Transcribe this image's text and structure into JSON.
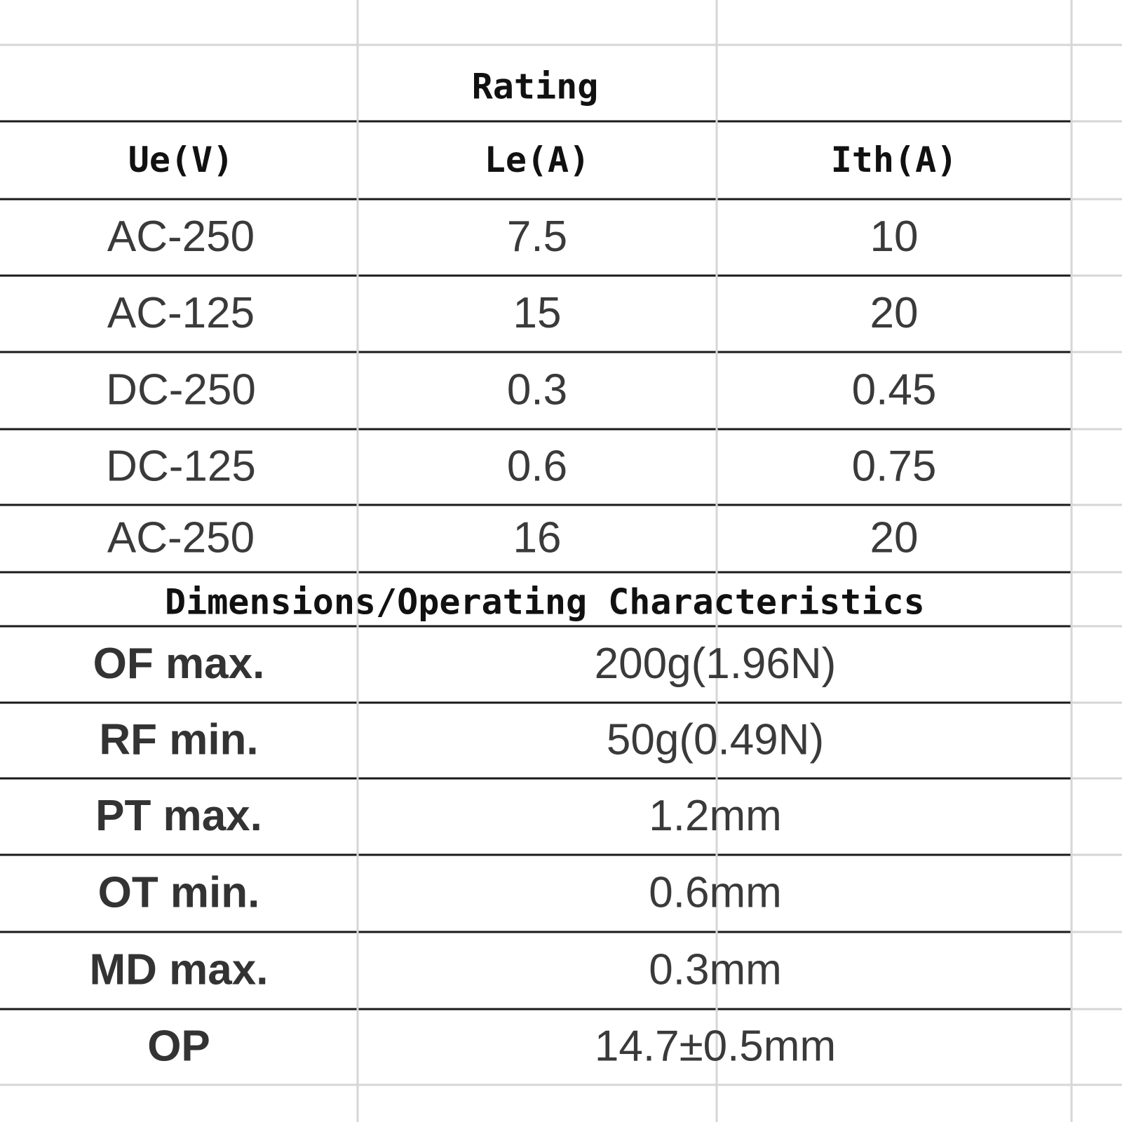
{
  "rating": {
    "title": "Rating",
    "headers": [
      "Ue(V)",
      "Le(A)",
      "Ith(A)"
    ],
    "rows": [
      [
        "AC-250",
        "7.5",
        "10"
      ],
      [
        "AC-125",
        "15",
        "20"
      ],
      [
        "DC-250",
        "0.3",
        "0.45"
      ],
      [
        "DC-125",
        "0.6",
        "0.75"
      ],
      [
        "AC-250",
        "16",
        "20"
      ]
    ]
  },
  "dimensions": {
    "title": "Dimensions/Operating Characteristics",
    "rows": [
      [
        "OF max.",
        "200g(1.96N)"
      ],
      [
        "RF min.",
        "50g(0.49N)"
      ],
      [
        "PT max.",
        "1.2mm"
      ],
      [
        "OT min.",
        "0.6mm"
      ],
      [
        "MD max.",
        "0.3mm"
      ],
      [
        "OP",
        "14.7±0.5mm"
      ]
    ]
  }
}
